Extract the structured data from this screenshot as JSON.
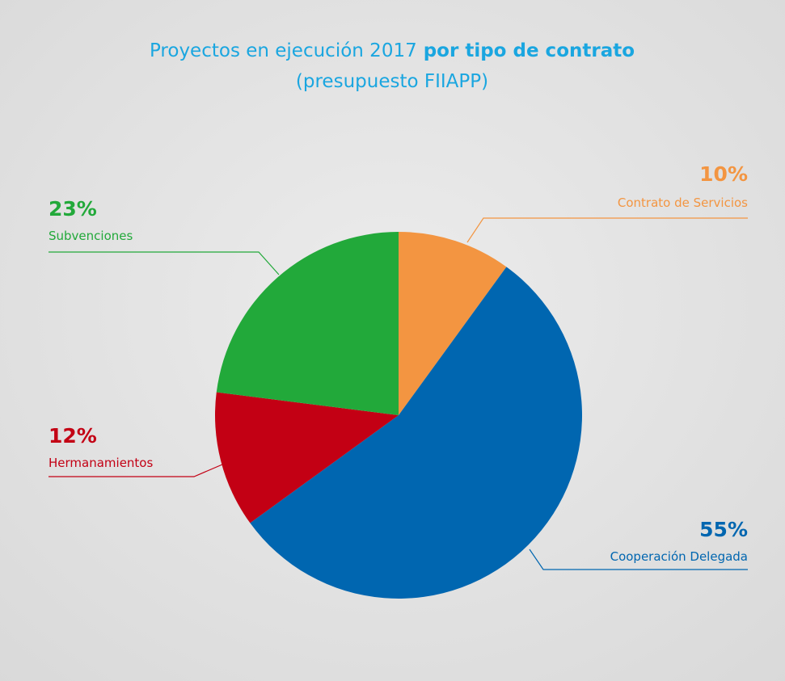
{
  "chart_data": {
    "type": "pie",
    "title": "Proyectos en ejecución 2017",
    "title_emphasis": "por tipo de contrato",
    "subtitle": "(presupuesto FIIAPP)",
    "categories": [
      "Contrato de Servicios",
      "Cooperación Delegada",
      "Hermanamientos",
      "Subvenciones"
    ],
    "values": [
      10,
      55,
      12,
      23
    ],
    "value_labels": [
      "10%",
      "55%",
      "12%",
      "23%"
    ],
    "colors": [
      "#f39541",
      "#0066b0",
      "#c30014",
      "#22a93a"
    ]
  }
}
